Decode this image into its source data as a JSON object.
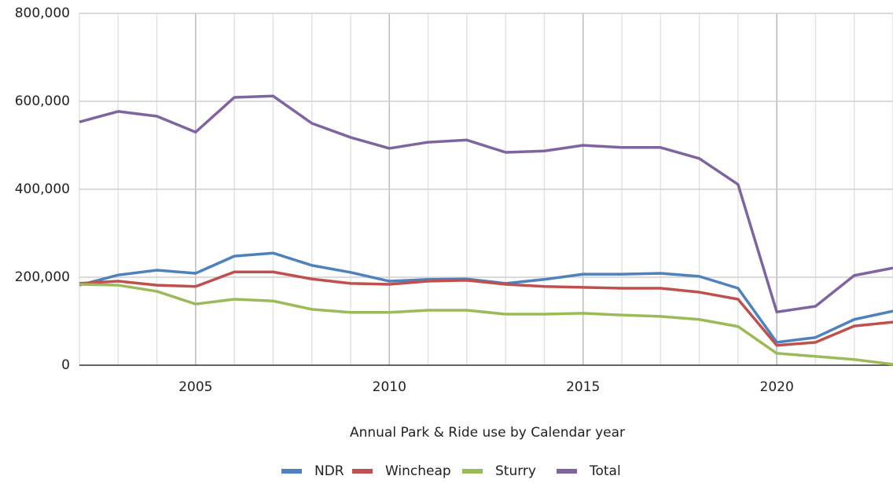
{
  "chart_data": {
    "type": "line",
    "x_label": "Annual Park & Ride use by Calendar year",
    "x": [
      2002,
      2003,
      2004,
      2005,
      2006,
      2007,
      2008,
      2009,
      2010,
      2011,
      2012,
      2013,
      2014,
      2015,
      2016,
      2017,
      2018,
      2019,
      2020,
      2021,
      2022,
      2023
    ],
    "series": [
      {
        "name": "NDR",
        "color": "#4e81bd",
        "values": [
          182000,
          205000,
          216000,
          209000,
          248000,
          255000,
          227000,
          211000,
          191000,
          195000,
          196000,
          186000,
          195000,
          207000,
          207000,
          209000,
          202000,
          175000,
          52000,
          63000,
          104000,
          123000
        ]
      },
      {
        "name": "Wincheap",
        "color": "#c0504d",
        "values": [
          186000,
          191000,
          182000,
          179000,
          212000,
          212000,
          196000,
          186000,
          184000,
          191000,
          193000,
          184000,
          179000,
          177000,
          175000,
          175000,
          166000,
          150000,
          45000,
          52000,
          89000,
          98000
        ]
      },
      {
        "name": "Sturry",
        "color": "#9bbb59",
        "values": [
          184000,
          182000,
          168000,
          139000,
          150000,
          146000,
          127000,
          120000,
          120000,
          125000,
          125000,
          116000,
          116000,
          118000,
          114000,
          111000,
          104000,
          88000,
          27000,
          20000,
          13000,
          2000
        ]
      },
      {
        "name": "Total",
        "color": "#8064a2",
        "values": [
          553000,
          577000,
          566000,
          530000,
          609000,
          612000,
          550000,
          518000,
          493000,
          507000,
          512000,
          484000,
          487000,
          500000,
          495000,
          495000,
          470000,
          411000,
          121000,
          134000,
          204000,
          221000
        ]
      }
    ],
    "xlim": [
      2002,
      2023
    ],
    "xticks": [
      2005,
      2010,
      2015,
      2020
    ],
    "ylim": [
      0,
      800000
    ],
    "yticks": [
      0,
      {
        "value": 200000,
        "label": "200,000"
      },
      {
        "value": 400000,
        "label": "400,000"
      },
      {
        "value": 600000,
        "label": "600,000"
      },
      {
        "value": 800000,
        "label": "800,000"
      }
    ],
    "grid": true,
    "legend": "bottom"
  }
}
